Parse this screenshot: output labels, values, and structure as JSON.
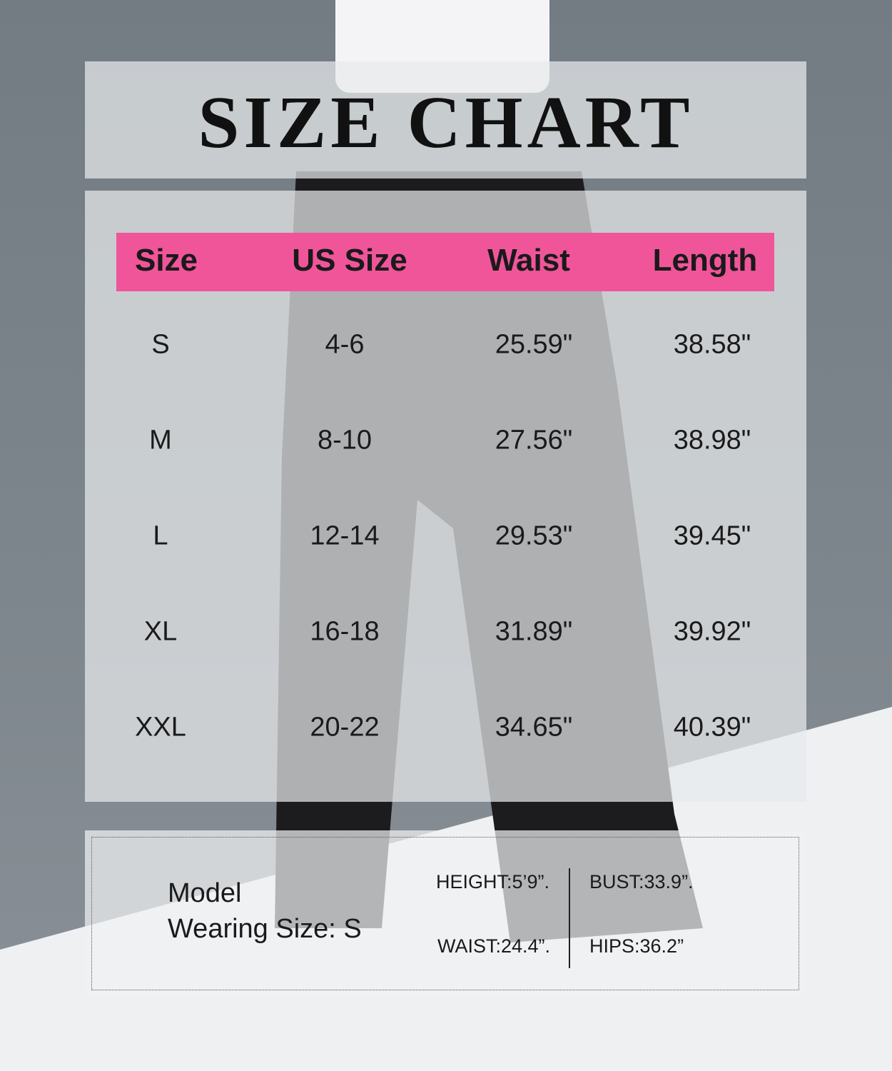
{
  "title": "SIZE CHART",
  "accent_color": "#f0559a",
  "chart_data": {
    "type": "table",
    "columns": [
      "Size",
      "US Size",
      "Waist",
      "Length"
    ],
    "rows": [
      [
        "S",
        "4-6",
        "25.59\"",
        "38.58\""
      ],
      [
        "M",
        "8-10",
        "27.56\"",
        "38.98\""
      ],
      [
        "L",
        "12-14",
        "29.53\"",
        "39.45\""
      ],
      [
        "XL",
        "16-18",
        "31.89\"",
        "39.92\""
      ],
      [
        "XXL",
        "20-22",
        "34.65\"",
        "40.39\""
      ]
    ]
  },
  "model": {
    "label_line1": "Model",
    "label_line2": "Wearing Size: S",
    "height": "HEIGHT:5’9”.",
    "bust": "BUST:33.9”.",
    "waist": "WAIST:24.4”.",
    "hips": "HIPS:36.2”"
  }
}
